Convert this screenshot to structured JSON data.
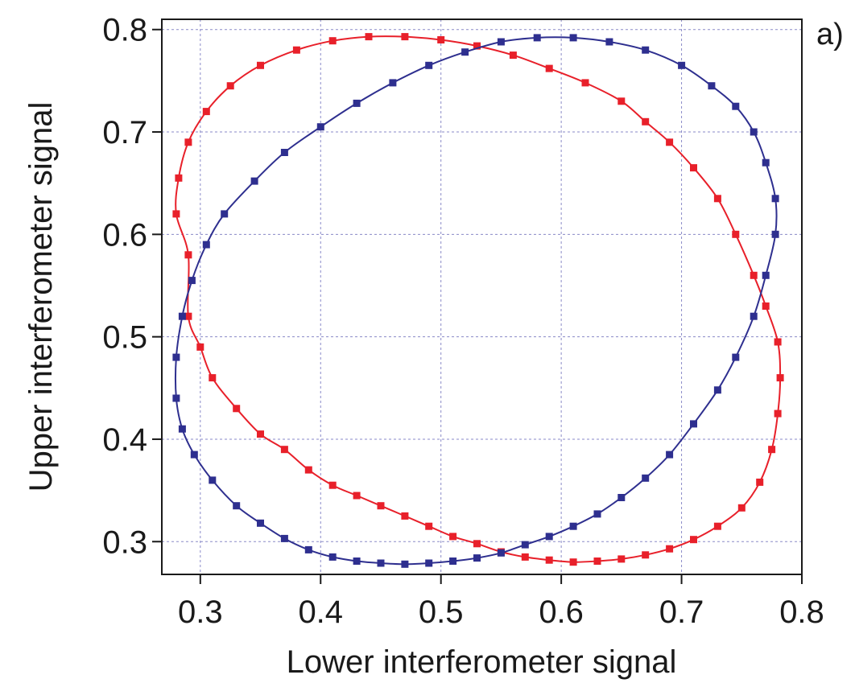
{
  "chart_data": {
    "type": "scatter",
    "title": "",
    "panel_label": "a)",
    "xlabel": "Lower interferometer signal",
    "ylabel": "Upper interferometer signal",
    "xlim": [
      0.268,
      0.8
    ],
    "ylim": [
      0.268,
      0.81
    ],
    "x_ticks": [
      0.3,
      0.4,
      0.5,
      0.6,
      0.7,
      0.8
    ],
    "y_ticks": [
      0.3,
      0.4,
      0.5,
      0.6,
      0.7,
      0.8
    ],
    "x_tick_labels": [
      "0.3",
      "0.4",
      "0.5",
      "0.6",
      "0.7",
      "0.8"
    ],
    "y_tick_labels": [
      "0.3",
      "0.4",
      "0.5",
      "0.6",
      "0.7",
      "0.8"
    ],
    "grid": true,
    "legend": "none",
    "series": [
      {
        "color": "#e8202a",
        "points": [
          [
            0.29,
            0.58
          ],
          [
            0.29,
            0.52
          ],
          [
            0.3,
            0.49
          ],
          [
            0.31,
            0.46
          ],
          [
            0.33,
            0.43
          ],
          [
            0.35,
            0.405
          ],
          [
            0.37,
            0.39
          ],
          [
            0.39,
            0.37
          ],
          [
            0.41,
            0.355
          ],
          [
            0.43,
            0.345
          ],
          [
            0.45,
            0.335
          ],
          [
            0.47,
            0.325
          ],
          [
            0.49,
            0.315
          ],
          [
            0.51,
            0.305
          ],
          [
            0.53,
            0.298
          ],
          [
            0.55,
            0.29
          ],
          [
            0.57,
            0.285
          ],
          [
            0.59,
            0.282
          ],
          [
            0.61,
            0.28
          ],
          [
            0.63,
            0.281
          ],
          [
            0.65,
            0.283
          ],
          [
            0.67,
            0.287
          ],
          [
            0.69,
            0.293
          ],
          [
            0.71,
            0.302
          ],
          [
            0.73,
            0.315
          ],
          [
            0.75,
            0.333
          ],
          [
            0.765,
            0.358
          ],
          [
            0.775,
            0.39
          ],
          [
            0.78,
            0.425
          ],
          [
            0.782,
            0.46
          ],
          [
            0.78,
            0.495
          ],
          [
            0.77,
            0.53
          ],
          [
            0.76,
            0.56
          ],
          [
            0.745,
            0.6
          ],
          [
            0.73,
            0.635
          ],
          [
            0.71,
            0.665
          ],
          [
            0.69,
            0.69
          ],
          [
            0.67,
            0.71
          ],
          [
            0.65,
            0.73
          ],
          [
            0.62,
            0.748
          ],
          [
            0.59,
            0.762
          ],
          [
            0.56,
            0.775
          ],
          [
            0.53,
            0.784
          ],
          [
            0.5,
            0.79
          ],
          [
            0.47,
            0.793
          ],
          [
            0.44,
            0.793
          ],
          [
            0.41,
            0.789
          ],
          [
            0.38,
            0.78
          ],
          [
            0.35,
            0.765
          ],
          [
            0.325,
            0.745
          ],
          [
            0.305,
            0.72
          ],
          [
            0.29,
            0.69
          ],
          [
            0.282,
            0.655
          ],
          [
            0.28,
            0.62
          ]
        ]
      },
      {
        "color": "#2e2f8f",
        "points": [
          [
            0.28,
            0.48
          ],
          [
            0.28,
            0.44
          ],
          [
            0.285,
            0.41
          ],
          [
            0.295,
            0.385
          ],
          [
            0.31,
            0.36
          ],
          [
            0.33,
            0.335
          ],
          [
            0.35,
            0.318
          ],
          [
            0.37,
            0.303
          ],
          [
            0.39,
            0.292
          ],
          [
            0.41,
            0.285
          ],
          [
            0.43,
            0.281
          ],
          [
            0.45,
            0.279
          ],
          [
            0.47,
            0.278
          ],
          [
            0.49,
            0.279
          ],
          [
            0.51,
            0.281
          ],
          [
            0.53,
            0.284
          ],
          [
            0.55,
            0.289
          ],
          [
            0.57,
            0.297
          ],
          [
            0.59,
            0.305
          ],
          [
            0.61,
            0.315
          ],
          [
            0.63,
            0.327
          ],
          [
            0.65,
            0.343
          ],
          [
            0.67,
            0.362
          ],
          [
            0.69,
            0.385
          ],
          [
            0.71,
            0.415
          ],
          [
            0.73,
            0.448
          ],
          [
            0.745,
            0.48
          ],
          [
            0.76,
            0.52
          ],
          [
            0.77,
            0.56
          ],
          [
            0.778,
            0.6
          ],
          [
            0.778,
            0.635
          ],
          [
            0.77,
            0.67
          ],
          [
            0.76,
            0.7
          ],
          [
            0.745,
            0.725
          ],
          [
            0.725,
            0.745
          ],
          [
            0.7,
            0.765
          ],
          [
            0.67,
            0.78
          ],
          [
            0.64,
            0.788
          ],
          [
            0.61,
            0.792
          ],
          [
            0.58,
            0.792
          ],
          [
            0.55,
            0.788
          ],
          [
            0.52,
            0.778
          ],
          [
            0.49,
            0.765
          ],
          [
            0.46,
            0.748
          ],
          [
            0.43,
            0.728
          ],
          [
            0.4,
            0.705
          ],
          [
            0.37,
            0.68
          ],
          [
            0.345,
            0.652
          ],
          [
            0.32,
            0.62
          ],
          [
            0.305,
            0.59
          ],
          [
            0.293,
            0.555
          ],
          [
            0.285,
            0.52
          ]
        ]
      }
    ]
  }
}
